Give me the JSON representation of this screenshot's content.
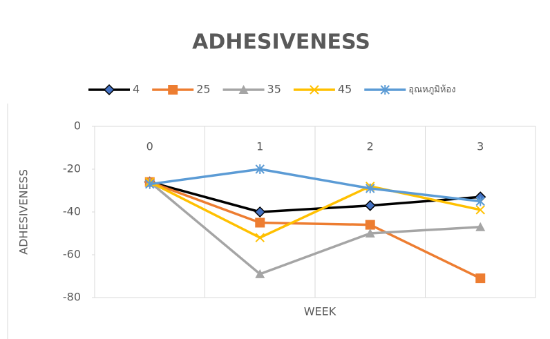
{
  "chart_data": {
    "type": "line",
    "title": "ADHESIVENESS",
    "x_label": "WEEK",
    "y_label": "ADHESIVENESS",
    "categories": [
      "0",
      "1",
      "2",
      "3"
    ],
    "series": [
      {
        "name": "4",
        "color": "#000000",
        "marker": "diamond",
        "marker_fill": "#4472c4",
        "values": [
          -26,
          -40,
          -37,
          -33
        ]
      },
      {
        "name": "25",
        "color": "#ed7d31",
        "marker": "square",
        "marker_fill": "#ed7d31",
        "values": [
          -26,
          -45,
          -46,
          -71
        ]
      },
      {
        "name": "35",
        "color": "#a5a5a5",
        "marker": "triangle",
        "marker_fill": "#a5a5a5",
        "values": [
          -26,
          -69,
          -50,
          -47
        ]
      },
      {
        "name": "45",
        "color": "#ffc000",
        "marker": "x",
        "marker_fill": "#ffc000",
        "values": [
          -26,
          -52,
          -28,
          -39
        ]
      },
      {
        "name": "อุณหภูมิห้อง",
        "color": "#5b9bd5",
        "marker": "star",
        "marker_fill": "#5b9bd5",
        "values": [
          -27,
          -20,
          -29,
          -35
        ]
      }
    ],
    "ylim": [
      -80,
      0
    ],
    "yticks": [
      0,
      -20,
      -40,
      -60,
      -80
    ],
    "grid": true,
    "legend": "top"
  }
}
